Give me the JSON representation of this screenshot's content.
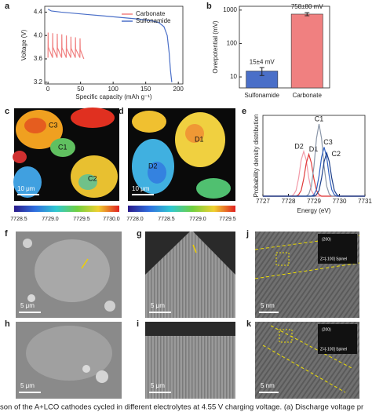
{
  "chart_data": [
    {
      "type": "line",
      "label": "a",
      "xlabel": "Specific capacity (mAh g⁻¹)",
      "ylabel": "Voltage (V)",
      "xlim": [
        -5,
        207
      ],
      "xticks": [
        0,
        50,
        100,
        150,
        200
      ],
      "ylim": [
        3.17,
        4.5
      ],
      "yticks": [
        3.2,
        3.6,
        {
          "value": 4,
          "label": "4.0"
        },
        4.4
      ],
      "legend": "upper right",
      "series": [
        {
          "name": "Carbonate",
          "color": "#f08080",
          "x": [
            0,
            0.2,
            0.5,
            7,
            7.2,
            7.5,
            14,
            14.2,
            14.5,
            21,
            21.2,
            21.5,
            28,
            28.2,
            28.5,
            35,
            35.2,
            35.5,
            42,
            42.2,
            42.5,
            49,
            49.2,
            49.5,
            55
          ],
          "values": [
            3.62,
            4.05,
            3.8,
            3.62,
            4.04,
            3.8,
            3.62,
            4.03,
            3.79,
            3.62,
            4.02,
            3.79,
            3.62,
            4.0,
            3.78,
            3.62,
            3.98,
            3.78,
            3.62,
            3.97,
            3.77,
            3.62,
            3.95,
            3.76,
            3.6
          ]
        },
        {
          "name": "Sulfonamide",
          "color": "#4a6fc8",
          "x": [
            0,
            5,
            20,
            40,
            60,
            80,
            100,
            120,
            140,
            160,
            170,
            178,
            183,
            186,
            188,
            190
          ],
          "values": [
            4.45,
            4.42,
            4.4,
            4.38,
            4.36,
            4.34,
            4.32,
            4.3,
            4.28,
            4.25,
            4.22,
            4.15,
            4.0,
            3.7,
            3.4,
            3.2
          ]
        }
      ]
    },
    {
      "type": "bar",
      "label": "b",
      "ylabel": "Overpotential (mV)",
      "yscale": "log",
      "ylim": [
        4.7,
        1300
      ],
      "yticks": [
        10,
        100,
        1000
      ],
      "categories": [
        "Sulfonamide",
        "Carbonate"
      ],
      "values": [
        15,
        758
      ],
      "errors": [
        4,
        80
      ],
      "value_labels": [
        "15±4 mV",
        "758±80 mV"
      ],
      "colors": [
        "#4a6fc8",
        "#f08080"
      ]
    },
    {
      "type": "line",
      "label": "e",
      "xlabel": "Energy (eV)",
      "ylabel": "Probability density distribution",
      "xlim": [
        7727,
        7731
      ],
      "xticks": [
        7727,
        7728,
        7729,
        7730,
        7731
      ],
      "ylim": [
        0,
        1.12
      ],
      "legend": "at peaks",
      "x": [
        7727,
        7728,
        7728.1,
        7728.2,
        7728.3,
        7728.4,
        7728.5,
        7728.6,
        7728.7,
        7728.8,
        7728.9,
        7729,
        7729.1,
        7729.2,
        7729.3,
        7729.4,
        7729.5,
        7729.6,
        7729.7,
        7729.8,
        7729.9,
        7730,
        7731
      ],
      "series": [
        {
          "name": "D2",
          "color": "#f29aa8",
          "values": [
            0,
            0,
            0,
            0.02,
            0.08,
            0.25,
            0.5,
            0.62,
            0.5,
            0.25,
            0.08,
            0.02,
            0,
            0,
            0,
            0,
            0,
            0,
            0,
            0,
            0,
            0,
            0
          ]
        },
        {
          "name": "D1",
          "color": "#e03a3a",
          "values": [
            0,
            0,
            0,
            0,
            0,
            0.02,
            0.08,
            0.24,
            0.46,
            0.58,
            0.46,
            0.24,
            0.08,
            0.02,
            0,
            0,
            0,
            0,
            0,
            0,
            0,
            0,
            0
          ]
        },
        {
          "name": "C1",
          "color": "#8a96a8",
          "values": [
            0,
            0,
            0,
            0,
            0,
            0,
            0,
            0,
            0,
            0.03,
            0.14,
            0.41,
            0.8,
            1.0,
            0.8,
            0.41,
            0.14,
            0.03,
            0,
            0,
            0,
            0,
            0
          ]
        },
        {
          "name": "C3",
          "color": "#2f5fc0",
          "values": [
            0,
            0,
            0,
            0,
            0,
            0,
            0,
            0,
            0,
            0,
            0,
            0.02,
            0.09,
            0.28,
            0.54,
            0.68,
            0.54,
            0.28,
            0.09,
            0.02,
            0,
            0,
            0
          ]
        },
        {
          "name": "C2",
          "color": "#1c3f8a",
          "values": [
            0,
            0,
            0,
            0,
            0,
            0,
            0,
            0,
            0,
            0,
            0,
            0,
            0.02,
            0.08,
            0.25,
            0.48,
            0.6,
            0.48,
            0.25,
            0.08,
            0.02,
            0,
            0
          ]
        }
      ]
    }
  ],
  "panels": {
    "c": {
      "label": "c",
      "annotations": [
        "C3",
        "C1",
        "C2"
      ],
      "scale_bar": "10 μm",
      "colorbar_ticks": [
        "7728.5",
        "7729.0",
        "7729.5",
        "7730.0"
      ]
    },
    "d": {
      "label": "d",
      "annotations": [
        "D1",
        "D2"
      ],
      "scale_bar": "10 μm",
      "colorbar_ticks": [
        "7728.0",
        "7728.5",
        "7729.0",
        "7729.5"
      ]
    },
    "f": {
      "label": "f",
      "scale_bar": "5 μm"
    },
    "g": {
      "label": "g",
      "scale_bar": "5 μm"
    },
    "h": {
      "label": "h",
      "scale_bar": "5 μm"
    },
    "i": {
      "label": "i",
      "scale_bar": "5 μm"
    },
    "j": {
      "label": "j",
      "scale_bar": "5 nm",
      "inset_index": "(200)",
      "inset_zone": "Z=[-100] Spinel"
    },
    "k": {
      "label": "k",
      "scale_bar": "5 nm",
      "inset_index": "(200)",
      "inset_zone": "Z=[-100] Spinel"
    }
  },
  "caption": "son of the A+LCO cathodes cycled in different electrolytes at 4.55 V charging voltage. (a) Discharge voltage pr"
}
